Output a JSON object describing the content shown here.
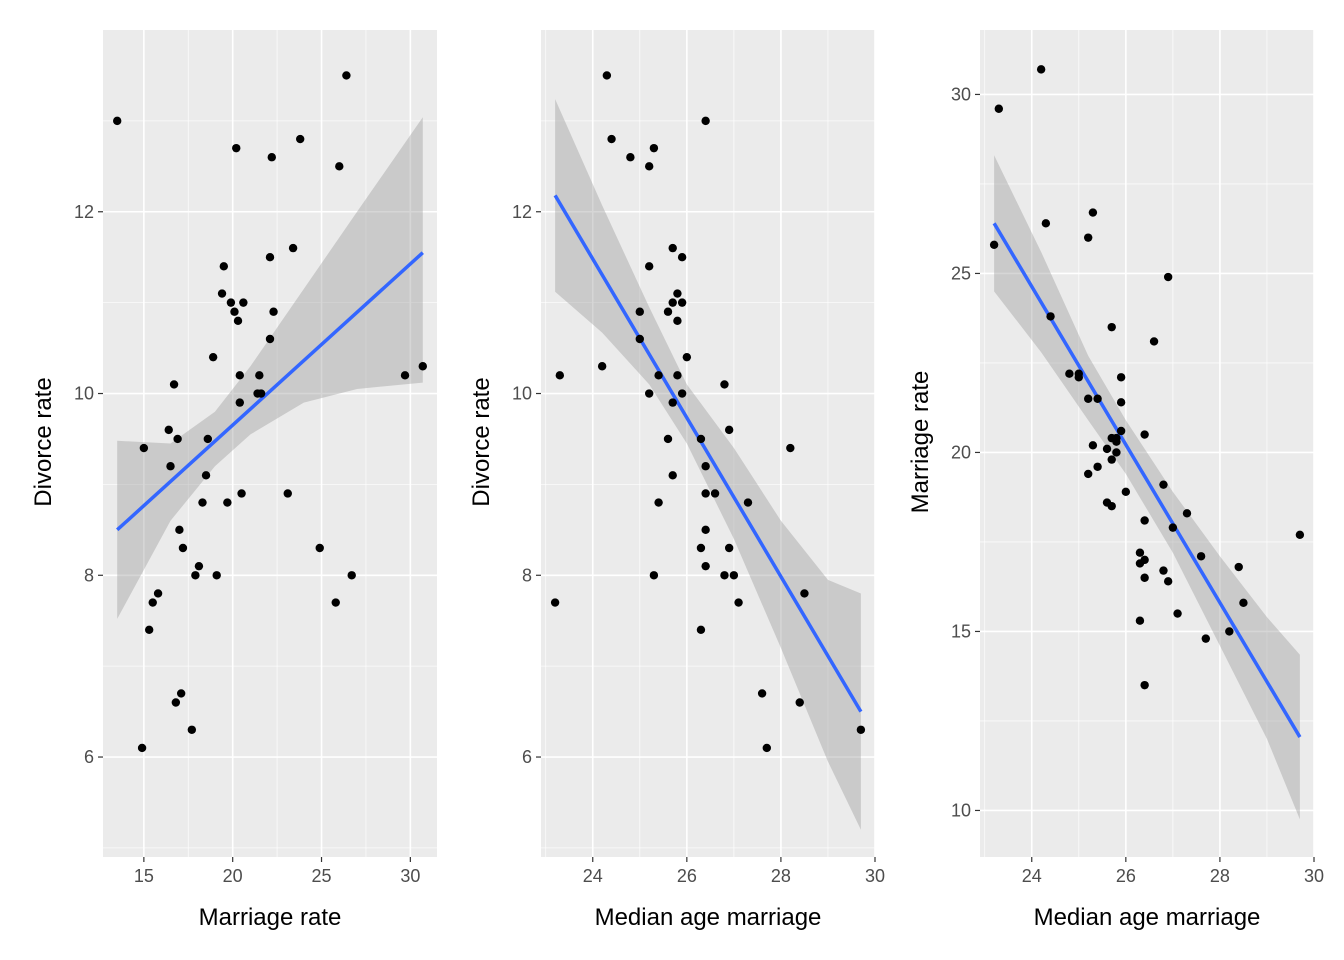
{
  "chart_data": [
    {
      "type": "scatter",
      "xlabel": "Marriage rate",
      "ylabel": "Divorce rate",
      "xlim": [
        12.7,
        31.5
      ],
      "ylim": [
        4.9,
        14.0
      ],
      "xticks": [
        15,
        20,
        25,
        30
      ],
      "yticks": [
        6,
        8,
        10,
        12
      ],
      "grid": true,
      "points": [
        [
          13.5,
          13.0
        ],
        [
          14.9,
          6.1
        ],
        [
          15.0,
          9.4
        ],
        [
          15.3,
          7.4
        ],
        [
          15.5,
          7.7
        ],
        [
          15.8,
          7.8
        ],
        [
          16.4,
          9.6
        ],
        [
          16.5,
          9.2
        ],
        [
          16.7,
          10.1
        ],
        [
          16.8,
          6.6
        ],
        [
          16.9,
          9.5
        ],
        [
          17.0,
          8.5
        ],
        [
          17.1,
          6.7
        ],
        [
          17.2,
          8.3
        ],
        [
          17.7,
          6.3
        ],
        [
          17.9,
          8.0
        ],
        [
          18.1,
          8.1
        ],
        [
          18.3,
          8.8
        ],
        [
          18.5,
          9.1
        ],
        [
          18.6,
          9.5
        ],
        [
          18.9,
          10.4
        ],
        [
          19.1,
          8.0
        ],
        [
          19.4,
          11.1
        ],
        [
          19.5,
          11.4
        ],
        [
          19.7,
          8.8
        ],
        [
          19.9,
          11.0
        ],
        [
          20.1,
          10.9
        ],
        [
          20.2,
          12.7
        ],
        [
          20.3,
          10.8
        ],
        [
          20.4,
          10.2
        ],
        [
          20.4,
          9.9
        ],
        [
          20.5,
          8.9
        ],
        [
          20.6,
          11.0
        ],
        [
          21.4,
          10.0
        ],
        [
          21.5,
          10.2
        ],
        [
          21.6,
          10.0
        ],
        [
          22.1,
          10.6
        ],
        [
          22.1,
          11.5
        ],
        [
          22.2,
          12.6
        ],
        [
          22.3,
          10.9
        ],
        [
          23.1,
          8.9
        ],
        [
          23.4,
          11.6
        ],
        [
          23.8,
          12.8
        ],
        [
          24.9,
          8.3
        ],
        [
          25.8,
          7.7
        ],
        [
          26.0,
          12.5
        ],
        [
          26.4,
          13.5
        ],
        [
          26.7,
          8.0
        ],
        [
          29.7,
          10.2
        ],
        [
          30.7,
          10.3
        ]
      ],
      "fit": {
        "x_start": 13.5,
        "y_start": 8.5,
        "x_end": 30.7,
        "y_end": 11.55,
        "band": [
          [
            13.5,
            7.52,
            9.48
          ],
          [
            16.5,
            8.6,
            9.45
          ],
          [
            19.0,
            9.2,
            9.8
          ],
          [
            21.0,
            9.55,
            10.3
          ],
          [
            24.0,
            9.9,
            11.15
          ],
          [
            27.0,
            10.05,
            12.0
          ],
          [
            30.7,
            10.12,
            13.04
          ]
        ]
      }
    },
    {
      "type": "scatter",
      "xlabel": "Median age marriage",
      "ylabel": "Divorce rate",
      "xlim": [
        22.9,
        30.0
      ],
      "ylim": [
        4.9,
        14.0
      ],
      "xticks": [
        24,
        26,
        28,
        30
      ],
      "yticks": [
        6,
        8,
        10,
        12
      ],
      "grid": true,
      "points": [
        [
          23.2,
          7.7
        ],
        [
          23.3,
          10.2
        ],
        [
          24.2,
          10.3
        ],
        [
          24.3,
          13.5
        ],
        [
          24.4,
          12.8
        ],
        [
          24.8,
          12.6
        ],
        [
          25.0,
          10.9
        ],
        [
          25.0,
          10.6
        ],
        [
          25.2,
          12.5
        ],
        [
          25.2,
          11.4
        ],
        [
          25.2,
          10.0
        ],
        [
          25.3,
          12.7
        ],
        [
          25.3,
          8.0
        ],
        [
          25.4,
          10.2
        ],
        [
          25.4,
          8.8
        ],
        [
          25.6,
          10.9
        ],
        [
          25.6,
          9.5
        ],
        [
          25.7,
          11.6
        ],
        [
          25.7,
          11.0
        ],
        [
          25.7,
          9.9
        ],
        [
          25.7,
          9.1
        ],
        [
          25.8,
          11.1
        ],
        [
          25.8,
          10.8
        ],
        [
          25.8,
          10.2
        ],
        [
          25.9,
          11.5
        ],
        [
          25.9,
          11.0
        ],
        [
          25.9,
          10.0
        ],
        [
          26.0,
          10.4
        ],
        [
          26.3,
          9.5
        ],
        [
          26.3,
          8.3
        ],
        [
          26.3,
          7.4
        ],
        [
          26.4,
          13.0
        ],
        [
          26.4,
          9.2
        ],
        [
          26.4,
          8.9
        ],
        [
          26.4,
          8.5
        ],
        [
          26.4,
          8.1
        ],
        [
          26.6,
          8.9
        ],
        [
          26.8,
          10.1
        ],
        [
          26.8,
          8.0
        ],
        [
          26.9,
          9.6
        ],
        [
          26.9,
          8.3
        ],
        [
          27.0,
          8.0
        ],
        [
          27.1,
          7.7
        ],
        [
          27.3,
          8.8
        ],
        [
          27.6,
          6.7
        ],
        [
          27.7,
          6.1
        ],
        [
          28.2,
          9.4
        ],
        [
          28.4,
          6.6
        ],
        [
          28.5,
          7.8
        ],
        [
          29.7,
          6.3
        ]
      ],
      "fit": {
        "x_start": 23.2,
        "y_start": 12.18,
        "x_end": 29.7,
        "y_end": 6.5,
        "band": [
          [
            23.2,
            11.12,
            13.24
          ],
          [
            24.2,
            10.67,
            12.07
          ],
          [
            25.2,
            10.1,
            10.95
          ],
          [
            26.0,
            9.45,
            10.1
          ],
          [
            27.0,
            8.4,
            9.4
          ],
          [
            28.0,
            7.2,
            8.6
          ],
          [
            29.0,
            5.95,
            7.95
          ],
          [
            29.7,
            5.2,
            7.8
          ]
        ]
      }
    },
    {
      "type": "scatter",
      "xlabel": "Median age marriage",
      "ylabel": "Marriage rate",
      "xlim": [
        22.9,
        30.0
      ],
      "ylim": [
        8.7,
        31.8
      ],
      "xticks": [
        24,
        26,
        28,
        30
      ],
      "yticks": [
        10,
        15,
        20,
        25,
        30
      ],
      "grid": true,
      "points": [
        [
          23.2,
          25.8
        ],
        [
          23.3,
          29.6
        ],
        [
          24.2,
          30.7
        ],
        [
          24.3,
          26.4
        ],
        [
          24.4,
          23.8
        ],
        [
          24.8,
          22.2
        ],
        [
          25.0,
          22.2
        ],
        [
          25.0,
          22.1
        ],
        [
          25.2,
          26.0
        ],
        [
          25.2,
          21.5
        ],
        [
          25.2,
          19.4
        ],
        [
          25.3,
          26.7
        ],
        [
          25.3,
          20.2
        ],
        [
          25.4,
          21.5
        ],
        [
          25.4,
          19.6
        ],
        [
          25.6,
          20.1
        ],
        [
          25.6,
          18.6
        ],
        [
          25.7,
          23.5
        ],
        [
          25.7,
          20.4
        ],
        [
          25.7,
          19.8
        ],
        [
          25.7,
          18.5
        ],
        [
          25.8,
          20.4
        ],
        [
          25.8,
          20.3
        ],
        [
          25.8,
          20.0
        ],
        [
          25.9,
          22.1
        ],
        [
          25.9,
          21.4
        ],
        [
          25.9,
          20.6
        ],
        [
          26.0,
          18.9
        ],
        [
          26.3,
          17.2
        ],
        [
          26.3,
          16.9
        ],
        [
          26.3,
          15.3
        ],
        [
          26.4,
          20.5
        ],
        [
          26.4,
          18.1
        ],
        [
          26.4,
          17.0
        ],
        [
          26.4,
          16.5
        ],
        [
          26.4,
          13.5
        ],
        [
          26.6,
          23.1
        ],
        [
          26.8,
          19.1
        ],
        [
          26.8,
          16.7
        ],
        [
          26.9,
          24.9
        ],
        [
          26.9,
          16.4
        ],
        [
          27.0,
          17.9
        ],
        [
          27.1,
          15.5
        ],
        [
          27.3,
          18.3
        ],
        [
          27.6,
          17.1
        ],
        [
          27.7,
          14.8
        ],
        [
          28.2,
          15.0
        ],
        [
          28.4,
          16.8
        ],
        [
          28.5,
          15.8
        ],
        [
          29.7,
          17.7
        ]
      ],
      "fit": {
        "x_start": 23.2,
        "y_start": 26.4,
        "x_end": 29.7,
        "y_end": 12.05,
        "band": [
          [
            23.2,
            24.5,
            28.3
          ],
          [
            24.2,
            22.8,
            25.6
          ],
          [
            25.2,
            20.9,
            22.7
          ],
          [
            26.0,
            19.4,
            20.9
          ],
          [
            27.0,
            17.2,
            18.9
          ],
          [
            28.0,
            14.6,
            17.1
          ],
          [
            29.0,
            12.0,
            15.4
          ],
          [
            29.7,
            9.75,
            14.35
          ]
        ]
      }
    }
  ]
}
